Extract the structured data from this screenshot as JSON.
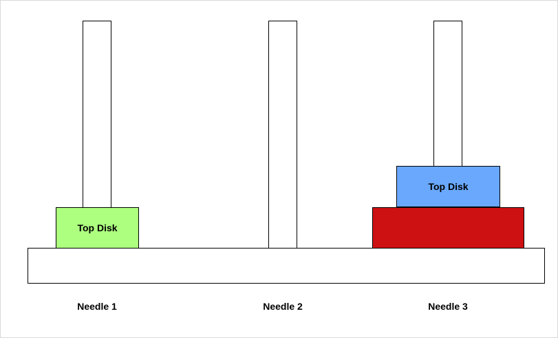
{
  "colors": {
    "disk_green": "#adff7f",
    "disk_blue": "#69a8fd",
    "disk_red": "#cd1011",
    "outline": "#000000"
  },
  "needles": [
    {
      "label": "Needle 1"
    },
    {
      "label": "Needle 2"
    },
    {
      "label": "Needle 3"
    }
  ],
  "disks": [
    {
      "needle": 1,
      "level": 1,
      "color": "#adff7f",
      "label": "Top Disk"
    },
    {
      "needle": 3,
      "level": 1,
      "color": "#cd1011",
      "label": ""
    },
    {
      "needle": 3,
      "level": 2,
      "color": "#69a8fd",
      "label": "Top Disk"
    }
  ]
}
